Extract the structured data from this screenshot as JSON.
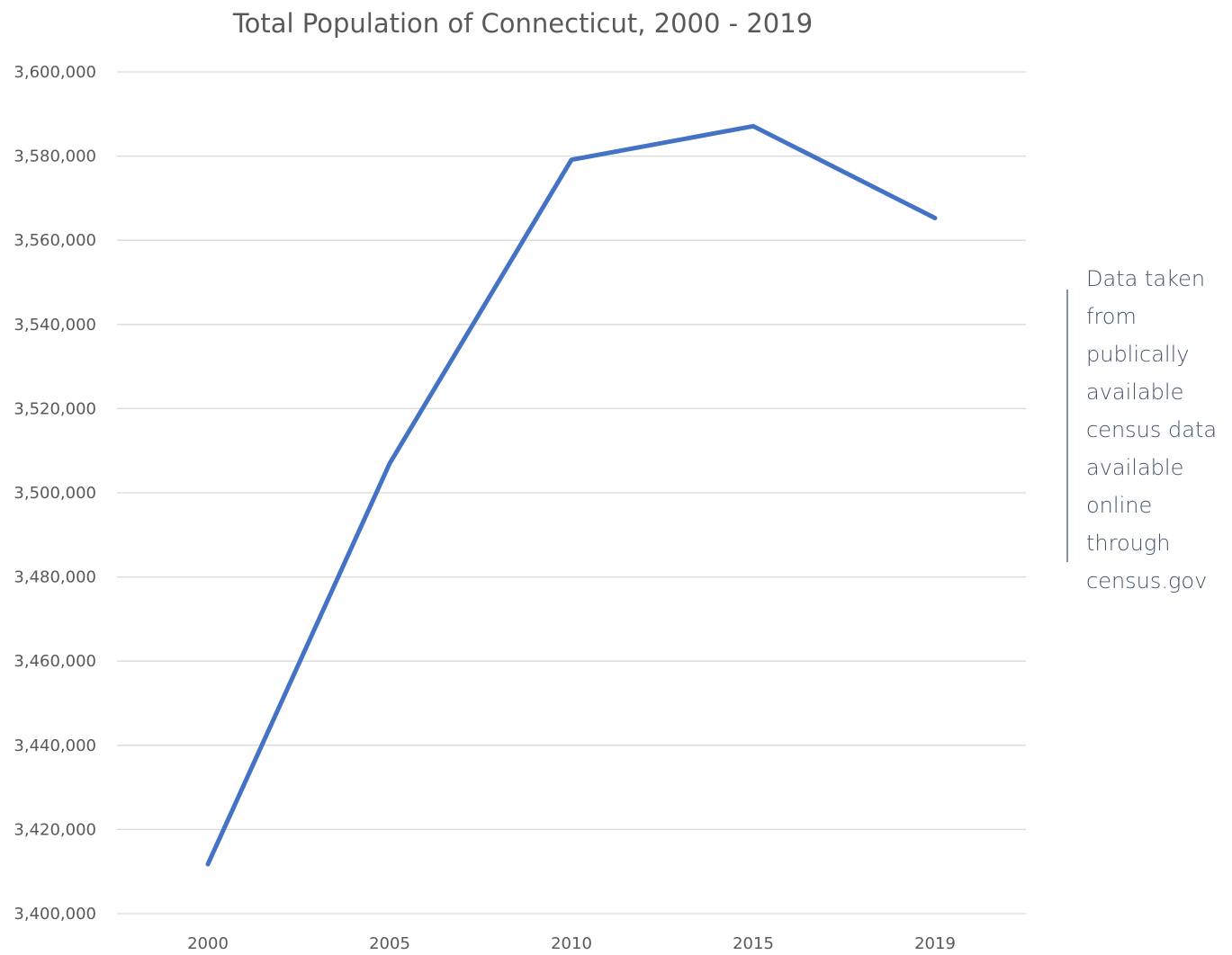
{
  "chart_data": {
    "type": "line",
    "title": "Total Population of Connecticut, 2000 - 2019",
    "xlabel": "",
    "ylabel": "",
    "categories": [
      "2000",
      "2005",
      "2010",
      "2015",
      "2019"
    ],
    "series": [
      {
        "values": [
          3411750,
          3506956,
          3579114,
          3587122,
          3565287
        ]
      }
    ],
    "ylim": [
      3400000,
      3600000
    ],
    "yticks": [
      3400000,
      3420000,
      3440000,
      3460000,
      3480000,
      3500000,
      3520000,
      3540000,
      3560000,
      3580000,
      3600000
    ],
    "ytick_labels": [
      "3,400,000",
      "3,420,000",
      "3,440,000",
      "3,460,000",
      "3,480,000",
      "3,500,000",
      "3,520,000",
      "3,540,000",
      "3,560,000",
      "3,580,000",
      "3,600,000"
    ],
    "grid": true,
    "legend": "none",
    "annotation": {
      "lines": [
        "Data taken",
        "from",
        "publically",
        "available",
        "census data",
        "available",
        "online",
        "through",
        "census.gov"
      ]
    }
  },
  "colors": {
    "series": "#4472c4",
    "grid": "#d9d9d9",
    "text": "#595959",
    "annotation": "#44546a"
  }
}
